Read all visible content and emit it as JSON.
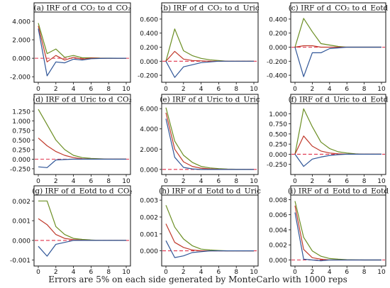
{
  "footnote": "Errors are 5% on each side generated by MonteCarlo with 1000 reps",
  "colors": {
    "upper": "#6b8e23",
    "irf": "#c0392b",
    "lower": "#2f5597",
    "zero": "#e0314b"
  },
  "chart_data": [
    {
      "type": "line",
      "title": "(a) IRF of d_CO₂ to d_CO₂",
      "xlim": [
        0,
        10
      ],
      "ylim": [
        -2.6,
        5.0
      ],
      "xticks": [
        "0",
        "2",
        "4",
        "6",
        "8",
        "10"
      ],
      "yticks": [
        -2,
        0,
        2,
        4
      ],
      "yticklabels": [
        "-2.000",
        "0.000",
        "2.000",
        "4.000"
      ],
      "x": [
        0,
        1,
        2,
        3,
        4,
        5,
        6,
        7,
        8,
        9,
        10
      ],
      "series": [
        {
          "values": [
            3.8,
            0.5,
            1.0,
            0.1,
            0.3,
            0.05,
            0.05,
            0.02,
            0.01,
            0.0,
            0.0
          ]
        },
        {
          "values": [
            3.5,
            -0.4,
            0.3,
            -0.2,
            0.1,
            -0.1,
            0.02,
            0.0,
            0.0,
            0.0,
            0.0
          ]
        },
        {
          "values": [
            3.2,
            -1.9,
            -0.4,
            -0.5,
            -0.1,
            -0.2,
            -0.05,
            -0.02,
            0.0,
            0.0,
            0.0
          ]
        }
      ]
    },
    {
      "type": "line",
      "title": "(b) IRF of d_CO₂ to d_Uric",
      "xlim": [
        0,
        10
      ],
      "ylim": [
        -0.3,
        0.7
      ],
      "xticks": [
        "0",
        "2",
        "4",
        "6",
        "8",
        "10"
      ],
      "yticks": [
        -0.2,
        0,
        0.2,
        0.4,
        0.6
      ],
      "yticklabels": [
        "-0.200",
        "0.000",
        "0.200",
        "0.400",
        "0.600"
      ],
      "x": [
        0,
        1,
        2,
        3,
        4,
        5,
        6,
        7,
        8,
        9,
        10
      ],
      "series": [
        {
          "values": [
            0.0,
            0.46,
            0.15,
            0.08,
            0.04,
            0.02,
            0.01,
            0.0,
            0.0,
            0.0,
            0.0
          ]
        },
        {
          "values": [
            0.0,
            0.14,
            0.03,
            0.01,
            0.005,
            0.0,
            0.0,
            0.0,
            0.0,
            0.0,
            0.0
          ]
        },
        {
          "values": [
            0.0,
            -0.23,
            -0.08,
            -0.05,
            -0.02,
            -0.01,
            0.0,
            0.0,
            0.0,
            0.0,
            0.0
          ]
        }
      ]
    },
    {
      "type": "line",
      "title": "(c) IRF of d_CO₂ to d_Eotd",
      "xlim": [
        0,
        10
      ],
      "ylim": [
        -0.5,
        0.5
      ],
      "xticks": [
        "0",
        "2",
        "4",
        "6",
        "8",
        "10"
      ],
      "yticks": [
        -0.4,
        -0.2,
        0,
        0.2,
        0.4
      ],
      "yticklabels": [
        "-0.400",
        "-0.200",
        "0.000",
        "0.200",
        "0.400"
      ],
      "x": [
        0,
        1,
        2,
        3,
        4,
        5,
        6,
        7,
        8,
        9,
        10
      ],
      "series": [
        {
          "values": [
            0.0,
            0.41,
            0.22,
            0.05,
            0.03,
            0.01,
            0.0,
            0.0,
            0.0,
            0.0,
            0.0
          ]
        },
        {
          "values": [
            0.0,
            0.02,
            0.02,
            0.0,
            0.0,
            0.0,
            0.0,
            0.0,
            0.0,
            0.0,
            0.0
          ]
        },
        {
          "values": [
            0.0,
            -0.42,
            -0.08,
            -0.08,
            -0.02,
            -0.01,
            0.0,
            0.0,
            0.0,
            0.0,
            0.0
          ]
        }
      ]
    },
    {
      "type": "line",
      "title": "(d) IRF of d_Uric to d_CO₂",
      "xlim": [
        0,
        10
      ],
      "ylim": [
        -0.4,
        1.45
      ],
      "xticks": [
        "0",
        "2",
        "4",
        "6",
        "8",
        "10"
      ],
      "yticks": [
        -0.25,
        0,
        0.25,
        0.5,
        0.75,
        1.0,
        1.25
      ],
      "yticklabels": [
        "-0.250",
        "0.000",
        "0.250",
        "0.500",
        "0.750",
        "1.000",
        "1.250"
      ],
      "x": [
        0,
        1,
        2,
        3,
        4,
        5,
        6,
        7,
        8,
        9,
        10
      ],
      "series": [
        {
          "values": [
            1.3,
            0.9,
            0.5,
            0.25,
            0.1,
            0.04,
            0.02,
            0.01,
            0.0,
            0.0,
            0.0
          ]
        },
        {
          "values": [
            0.55,
            0.35,
            0.2,
            0.1,
            0.04,
            0.01,
            0.0,
            0.0,
            0.0,
            0.0,
            0.0
          ]
        },
        {
          "values": [
            -0.2,
            -0.22,
            -0.02,
            -0.01,
            0.0,
            0.0,
            0.0,
            0.0,
            0.0,
            0.0,
            0.0
          ]
        }
      ]
    },
    {
      "type": "line",
      "title": "(e) IRF of d_Uric to d_Uric",
      "xlim": [
        0,
        10
      ],
      "ylim": [
        -0.5,
        6.5
      ],
      "xticks": [
        "0",
        "2",
        "4",
        "6",
        "8",
        "10"
      ],
      "yticks": [
        0,
        2,
        4,
        6
      ],
      "yticklabels": [
        "0.000",
        "2.000",
        "4.000",
        "6.000"
      ],
      "x": [
        0,
        1,
        2,
        3,
        4,
        5,
        6,
        7,
        8,
        9,
        10
      ],
      "series": [
        {
          "values": [
            6.1,
            2.8,
            1.4,
            0.7,
            0.3,
            0.15,
            0.08,
            0.04,
            0.02,
            0.01,
            0.0
          ]
        },
        {
          "values": [
            5.6,
            2.0,
            0.75,
            0.3,
            0.12,
            0.05,
            0.02,
            0.01,
            0.0,
            0.0,
            0.0
          ]
        },
        {
          "values": [
            5.0,
            1.2,
            0.2,
            0.05,
            0.0,
            0.0,
            0.0,
            0.0,
            0.0,
            0.0,
            0.0
          ]
        }
      ]
    },
    {
      "type": "line",
      "title": "(f) IRF of d_Uric to d_Eotd",
      "xlim": [
        0,
        10
      ],
      "ylim": [
        -0.5,
        1.25
      ],
      "xticks": [
        "0",
        "2",
        "4",
        "6",
        "8",
        "10"
      ],
      "yticks": [
        -0.25,
        0,
        0.25,
        0.5,
        0.75,
        1.0
      ],
      "yticklabels": [
        "-0.250",
        "0.000",
        "0.250",
        "0.500",
        "0.750",
        "1.000"
      ],
      "x": [
        0,
        1,
        2,
        3,
        4,
        5,
        6,
        7,
        8,
        9,
        10
      ],
      "series": [
        {
          "values": [
            0.0,
            1.12,
            0.68,
            0.3,
            0.14,
            0.06,
            0.03,
            0.01,
            0.0,
            0.0,
            0.0
          ]
        },
        {
          "values": [
            0.0,
            0.45,
            0.2,
            0.08,
            0.03,
            0.01,
            0.0,
            0.0,
            0.0,
            0.0,
            0.0
          ]
        },
        {
          "values": [
            0.0,
            -0.3,
            -0.12,
            -0.07,
            -0.03,
            -0.01,
            0.0,
            0.0,
            0.0,
            0.0,
            0.0
          ]
        }
      ]
    },
    {
      "type": "line",
      "title": "(g) IRF of d_Eotd to d_CO₂",
      "xlim": [
        0,
        10
      ],
      "ylim": [
        -0.0013,
        0.0023
      ],
      "xticks": [
        "0",
        "2",
        "4",
        "6",
        "8",
        "10"
      ],
      "yticks": [
        -0.001,
        0,
        0.001,
        0.002
      ],
      "yticklabels": [
        "-0.001",
        "0.000",
        "0.001",
        "0.002"
      ],
      "x": [
        0,
        1,
        2,
        3,
        4,
        5,
        6,
        7,
        8,
        9,
        10
      ],
      "series": [
        {
          "values": [
            0.002,
            0.002,
            0.0007,
            0.0003,
            0.0001,
            5e-05,
            2e-05,
            0.0,
            0.0,
            0.0,
            0.0
          ]
        },
        {
          "values": [
            0.0011,
            0.0008,
            0.0003,
            0.0001,
            4e-05,
            1e-05,
            0.0,
            0.0,
            0.0,
            0.0,
            0.0
          ]
        },
        {
          "values": [
            -0.0003,
            -0.0008,
            -0.0002,
            -0.0001,
            0.0,
            0.0,
            0.0,
            0.0,
            0.0,
            0.0,
            0.0
          ]
        }
      ]
    },
    {
      "type": "line",
      "title": "(h) IRF of d_Eotd to d_Uric",
      "xlim": [
        0,
        10
      ],
      "ylim": [
        -0.0009,
        0.0033
      ],
      "xticks": [
        "0",
        "2",
        "4",
        "6",
        "8",
        "10"
      ],
      "yticks": [
        0,
        0.001,
        0.002,
        0.003
      ],
      "yticklabels": [
        "0.000",
        "0.001",
        "0.002",
        "0.003"
      ],
      "x": [
        0,
        1,
        2,
        3,
        4,
        5,
        6,
        7,
        8,
        9,
        10
      ],
      "series": [
        {
          "values": [
            0.0027,
            0.0014,
            0.0007,
            0.0003,
            0.0001,
            5e-05,
            2e-05,
            0.0,
            0.0,
            0.0,
            0.0
          ]
        },
        {
          "values": [
            0.0016,
            0.0005,
            0.0002,
            5e-05,
            0.0,
            0.0,
            0.0,
            0.0,
            0.0,
            0.0,
            0.0
          ]
        },
        {
          "values": [
            0.0006,
            -0.0004,
            -0.0003,
            -0.0001,
            -5e-05,
            0.0,
            0.0,
            0.0,
            0.0,
            0.0,
            0.0
          ]
        }
      ]
    },
    {
      "type": "line",
      "title": "(i) IRF of d_Eotd to d_Eotd",
      "xlim": [
        0,
        10
      ],
      "ylim": [
        -0.0008,
        0.0086
      ],
      "xticks": [
        "0",
        "2",
        "4",
        "6",
        "8",
        "10"
      ],
      "yticks": [
        0,
        0.002,
        0.004,
        0.006,
        0.008
      ],
      "yticklabels": [
        "0.000",
        "0.002",
        "0.004",
        "0.006",
        "0.008"
      ],
      "x": [
        0,
        1,
        2,
        3,
        4,
        5,
        6,
        7,
        8,
        9,
        10
      ],
      "series": [
        {
          "values": [
            0.0078,
            0.003,
            0.0012,
            0.0005,
            0.0002,
            0.0001,
            4e-05,
            2e-05,
            0.0,
            0.0,
            0.0
          ]
        },
        {
          "values": [
            0.0072,
            0.0014,
            0.0003,
            0.0001,
            0.0,
            0.0,
            0.0,
            0.0,
            0.0,
            0.0,
            0.0
          ]
        },
        {
          "values": [
            0.0063,
            0.0001,
            0.0,
            -0.0001,
            0.0,
            0.0,
            0.0,
            0.0,
            0.0,
            0.0,
            0.0
          ]
        }
      ]
    }
  ]
}
